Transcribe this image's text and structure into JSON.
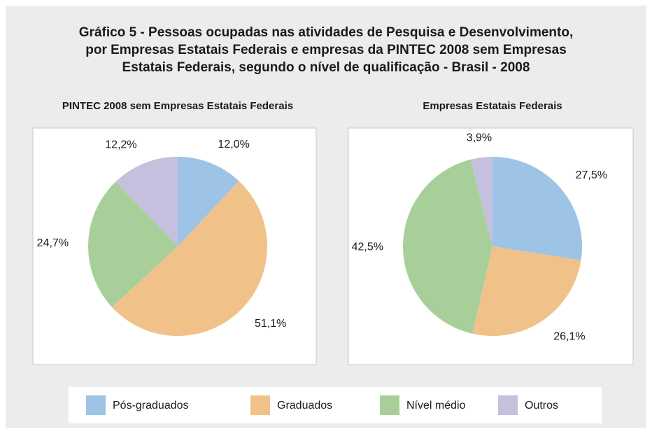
{
  "title": [
    "Gráfico 5 - Pessoas ocupadas nas atividades de Pesquisa e Desenvolvimento,",
    "por Empresas Estatais Federais e empresas da PINTEC  2008 sem Empresas",
    "Estatais Federais, segundo o nível de qualificação - Brasil - 2008"
  ],
  "chart_data": [
    {
      "type": "pie",
      "title": "PINTEC 2008 sem Empresas Estatais Federais",
      "categories": [
        "Pós-graduados",
        "Graduados",
        "Nível médio",
        "Outros"
      ],
      "values": [
        12.0,
        51.1,
        24.7,
        12.2
      ],
      "value_labels": [
        "12,0%",
        "51,1%",
        "24,7%",
        "12,2%"
      ],
      "colors": [
        "#9dc3e6",
        "#f0c28a",
        "#a8cf9a",
        "#c5c0de"
      ]
    },
    {
      "type": "pie",
      "title": "Empresas Estatais Federais",
      "categories": [
        "Pós-graduados",
        "Graduados",
        "Nível médio",
        "Outros"
      ],
      "values": [
        27.5,
        26.1,
        42.5,
        3.9
      ],
      "value_labels": [
        "27,5%",
        "26,1%",
        "42,5%",
        "3,9%"
      ],
      "colors": [
        "#9dc3e6",
        "#f0c28a",
        "#a8cf9a",
        "#c5c0de"
      ]
    }
  ]
}
